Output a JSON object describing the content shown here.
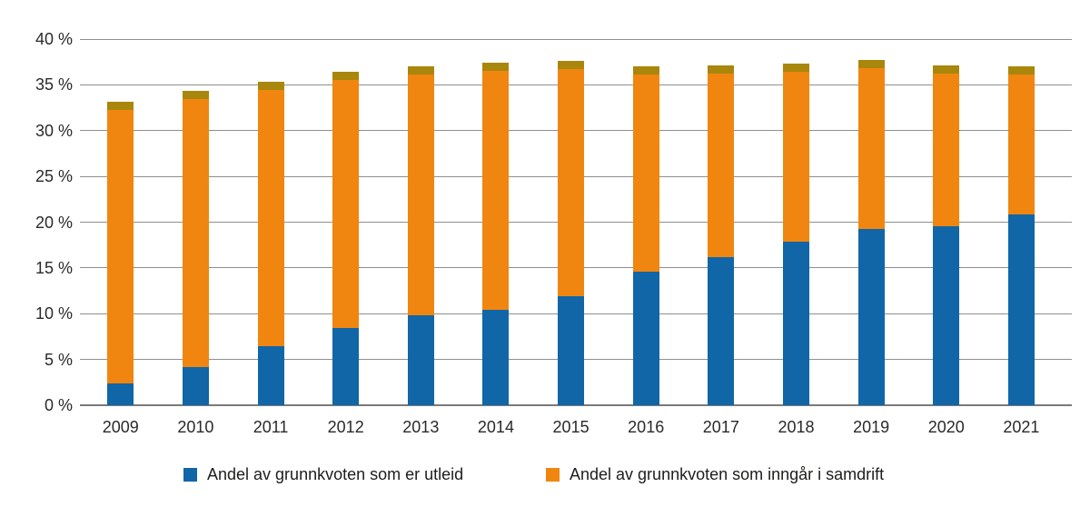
{
  "chart_data": {
    "type": "bar",
    "stacked": true,
    "title": "",
    "categories": [
      "2009",
      "2010",
      "2011",
      "2012",
      "2013",
      "2014",
      "2015",
      "2016",
      "2017",
      "2018",
      "2019",
      "2020",
      "2021"
    ],
    "series": [
      {
        "name": "Andel av grunnkvoten som er utleid",
        "color": "#1066A7",
        "values": [
          2.4,
          4.2,
          6.5,
          8.4,
          9.8,
          10.4,
          11.9,
          14.6,
          16.2,
          17.9,
          19.3,
          19.6,
          20.8
        ]
      },
      {
        "name": "Andel av grunnkvoten som inngår i samdrift",
        "color": "#F08610",
        "cap_color": "#A9860C",
        "values": [
          30.8,
          30.1,
          28.8,
          28.0,
          27.2,
          27.0,
          25.7,
          22.4,
          20.9,
          19.4,
          18.4,
          17.5,
          16.2
        ]
      }
    ],
    "stack_totals": [
      33.2,
      34.3,
      35.3,
      36.4,
      37.0,
      37.4,
      37.6,
      37.0,
      37.1,
      37.3,
      37.7,
      37.1,
      37.0
    ],
    "ylim": [
      0,
      40
    ],
    "yticks": [
      {
        "value": 40,
        "label": "40 %"
      },
      {
        "value": 35,
        "label": "35 %"
      },
      {
        "value": 30,
        "label": "30 %"
      },
      {
        "value": 25,
        "label": "25 %"
      },
      {
        "value": 20,
        "label": "20 %"
      },
      {
        "value": 15,
        "label": "15 %"
      },
      {
        "value": 10,
        "label": "10 %"
      },
      {
        "value": 5,
        "label": "5 %"
      },
      {
        "value": 0,
        "label": "0 %"
      }
    ],
    "xlabel": "",
    "ylabel": "",
    "grid": true,
    "legend_position": "bottom"
  },
  "legend": {
    "items": [
      {
        "label": "Andel av grunnkvoten som er utleid",
        "color": "#1066A7"
      },
      {
        "label": "Andel av grunnkvoten som inngår i samdrift",
        "color": "#F08610"
      }
    ]
  },
  "style": {
    "gridline_color": "#8f8f8f",
    "baseline_color": "#7a7a7a",
    "tick_text_color": "#2b2a29",
    "background": "#ffffff"
  }
}
